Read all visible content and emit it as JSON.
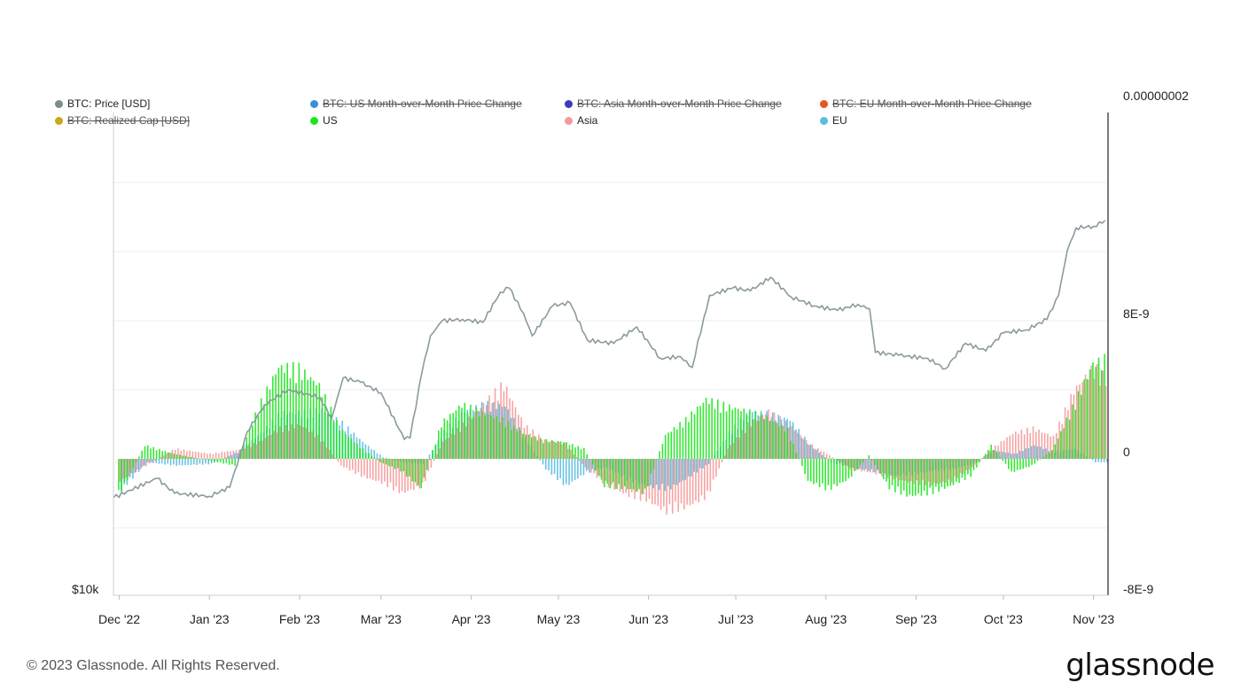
{
  "legend": [
    {
      "label": "BTC: Price [USD]",
      "color": "#7f8c8d",
      "enabled": true
    },
    {
      "label": "BTC: US Month-over-Month Price Change",
      "color": "#3a8fd9",
      "enabled": false
    },
    {
      "label": "BTC: Asia Month-over-Month Price Change",
      "color": "#3b3bbf",
      "enabled": false
    },
    {
      "label": "BTC: EU Month-over-Month Price Change",
      "color": "#e8561c",
      "enabled": false
    },
    {
      "label": "BTC: Realized Cap [USD]",
      "color": "#c9a81b",
      "enabled": false
    },
    {
      "label": "US",
      "color": "#1ee61e",
      "enabled": true
    },
    {
      "label": "Asia",
      "color": "#f59a9a",
      "enabled": true
    },
    {
      "label": "EU",
      "color": "#5bbde0",
      "enabled": true
    }
  ],
  "footer": "© 2023 Glassnode. All Rights Reserved.",
  "brand": "glassnode",
  "chart_data": {
    "type": "bar",
    "x_ticks": [
      "Dec '22",
      "Jan '23",
      "Feb '23",
      "Mar '23",
      "Apr '23",
      "May '23",
      "Jun '23",
      "Jul '23",
      "Aug '23",
      "Sep '23",
      "Oct '23",
      "Nov '23"
    ],
    "left_axis": {
      "label": "$10k"
    },
    "right_axis": {
      "ticks": [
        "0.00000002",
        "8E-9",
        "0",
        "-8E-9"
      ],
      "range": [
        -8e-09,
        2e-08
      ]
    },
    "grid": true,
    "price_series": {
      "name": "BTC: Price [USD]",
      "color": "#8a9a9e",
      "x": [
        "2022-11-29",
        "2022-12-14",
        "2022-12-20",
        "2023-01-01",
        "2023-01-08",
        "2023-01-14",
        "2023-01-20",
        "2023-01-28",
        "2023-02-08",
        "2023-02-12",
        "2023-02-16",
        "2023-02-22",
        "2023-03-01",
        "2023-03-09",
        "2023-03-11",
        "2023-03-15",
        "2023-03-18",
        "2023-03-22",
        "2023-03-29",
        "2023-04-05",
        "2023-04-11",
        "2023-04-14",
        "2023-04-19",
        "2023-04-22",
        "2023-04-29",
        "2023-05-05",
        "2023-05-11",
        "2023-05-20",
        "2023-05-28",
        "2023-06-05",
        "2023-06-12",
        "2023-06-16",
        "2023-06-20",
        "2023-06-22",
        "2023-06-30",
        "2023-07-06",
        "2023-07-13",
        "2023-07-20",
        "2023-07-28",
        "2023-08-05",
        "2023-08-12",
        "2023-08-16",
        "2023-08-18",
        "2023-08-26",
        "2023-09-05",
        "2023-09-11",
        "2023-09-18",
        "2023-09-25",
        "2023-10-01",
        "2023-10-09",
        "2023-10-16",
        "2023-10-20",
        "2023-10-23",
        "2023-10-26",
        "2023-11-01",
        "2023-11-05"
      ],
      "values": [
        16500,
        17800,
        16800,
        16600,
        17200,
        20900,
        22700,
        23700,
        23200,
        21800,
        24500,
        24200,
        23500,
        20400,
        20500,
        24800,
        27300,
        28300,
        28400,
        28200,
        30200,
        30500,
        28800,
        27300,
        29300,
        29500,
        27000,
        26800,
        27900,
        25800,
        25900,
        25200,
        28500,
        30000,
        30500,
        30300,
        31200,
        29900,
        29300,
        29000,
        29400,
        29100,
        26200,
        26000,
        25800,
        25100,
        26800,
        26300,
        27500,
        27700,
        28400,
        30000,
        33000,
        34500,
        34600,
        35000
      ]
    },
    "bar_series": [
      {
        "name": "US",
        "color": "#1ee61e",
        "x": [
          "2022-12-01",
          "2022-12-10",
          "2022-12-20",
          "2023-01-01",
          "2023-01-10",
          "2023-01-18",
          "2023-01-25",
          "2023-02-01",
          "2023-02-08",
          "2023-02-15",
          "2023-02-22",
          "2023-03-01",
          "2023-03-08",
          "2023-03-15",
          "2023-03-22",
          "2023-03-29",
          "2023-04-05",
          "2023-04-12",
          "2023-04-19",
          "2023-04-26",
          "2023-05-03",
          "2023-05-10",
          "2023-05-17",
          "2023-05-24",
          "2023-05-31",
          "2023-06-07",
          "2023-06-14",
          "2023-06-21",
          "2023-06-28",
          "2023-07-05",
          "2023-07-12",
          "2023-07-19",
          "2023-07-26",
          "2023-08-02",
          "2023-08-09",
          "2023-08-16",
          "2023-08-23",
          "2023-08-30",
          "2023-09-06",
          "2023-09-13",
          "2023-09-20",
          "2023-09-27",
          "2023-10-04",
          "2023-10-11",
          "2023-10-18",
          "2023-10-25",
          "2023-11-01",
          "2023-11-05"
        ],
        "values": [
          -2.2e-09,
          8e-10,
          3e-10,
          -1e-10,
          -4e-10,
          3e-09,
          5.4e-09,
          5.3e-09,
          4.3e-09,
          1.8e-09,
          7e-10,
          -2e-10,
          -7e-10,
          -1.7e-09,
          2.1e-09,
          3.2e-09,
          2.7e-09,
          2.3e-09,
          1.5e-09,
          1.1e-09,
          1e-09,
          6e-10,
          -1.6e-09,
          -1.7e-09,
          -2e-09,
          1.4e-09,
          2.3e-09,
          3.5e-09,
          3.1e-09,
          2.8e-09,
          2.4e-09,
          1.7e-09,
          -1.3e-09,
          -1.8e-09,
          -1.2e-09,
          2e-10,
          -1.7e-09,
          -2.2e-09,
          -2e-09,
          -1.6e-09,
          -1e-09,
          8e-10,
          -8e-10,
          -4e-10,
          5e-10,
          3e-09,
          5.6e-09,
          5.8e-09
        ]
      },
      {
        "name": "Asia",
        "color": "#f59a9a",
        "x": [
          "2022-12-01",
          "2022-12-10",
          "2022-12-20",
          "2023-01-01",
          "2023-01-10",
          "2023-01-18",
          "2023-01-25",
          "2023-02-01",
          "2023-02-08",
          "2023-02-15",
          "2023-02-22",
          "2023-03-01",
          "2023-03-08",
          "2023-03-15",
          "2023-03-22",
          "2023-03-29",
          "2023-04-05",
          "2023-04-12",
          "2023-04-19",
          "2023-04-26",
          "2023-05-03",
          "2023-05-10",
          "2023-05-17",
          "2023-05-24",
          "2023-05-31",
          "2023-06-07",
          "2023-06-14",
          "2023-06-21",
          "2023-06-28",
          "2023-07-05",
          "2023-07-12",
          "2023-07-19",
          "2023-07-26",
          "2023-08-02",
          "2023-08-09",
          "2023-08-16",
          "2023-08-23",
          "2023-08-30",
          "2023-09-06",
          "2023-09-13",
          "2023-09-20",
          "2023-09-27",
          "2023-10-04",
          "2023-10-11",
          "2023-10-18",
          "2023-10-25",
          "2023-11-01",
          "2023-11-05"
        ],
        "values": [
          -1.3e-09,
          -4e-10,
          6e-10,
          3e-10,
          5e-10,
          1e-09,
          1.8e-09,
          2e-09,
          1.2e-09,
          -4e-10,
          -1e-09,
          -1.4e-09,
          -2e-09,
          -1.6e-09,
          1e-09,
          2e-09,
          3.2e-09,
          4.4e-09,
          2e-09,
          1.1e-09,
          9e-10,
          -5e-10,
          -1.5e-09,
          -2.1e-09,
          -2.4e-09,
          -3.1e-09,
          -2.8e-09,
          -2.2e-09,
          6e-10,
          2e-09,
          2.8e-09,
          2e-09,
          9e-10,
          2e-10,
          -6e-10,
          -8e-10,
          -1.1e-09,
          -1.4e-09,
          -1.5e-09,
          -1.3e-09,
          -5e-10,
          6e-10,
          1.5e-09,
          1.8e-09,
          1.3e-09,
          4e-09,
          5.4e-09,
          4.7e-09
        ]
      },
      {
        "name": "EU",
        "color": "#5bbde0",
        "x": [
          "2022-12-01",
          "2022-12-10",
          "2022-12-20",
          "2023-01-01",
          "2023-01-10",
          "2023-01-18",
          "2023-01-25",
          "2023-02-01",
          "2023-02-08",
          "2023-02-15",
          "2023-02-22",
          "2023-03-01",
          "2023-03-08",
          "2023-03-15",
          "2023-03-22",
          "2023-03-29",
          "2023-04-05",
          "2023-04-12",
          "2023-04-19",
          "2023-04-26",
          "2023-05-03",
          "2023-05-10",
          "2023-05-17",
          "2023-05-24",
          "2023-05-31",
          "2023-06-07",
          "2023-06-14",
          "2023-06-21",
          "2023-06-28",
          "2023-07-05",
          "2023-07-12",
          "2023-07-19",
          "2023-07-26",
          "2023-08-02",
          "2023-08-09",
          "2023-08-16",
          "2023-08-23",
          "2023-08-30",
          "2023-09-06",
          "2023-09-13",
          "2023-09-20",
          "2023-09-27",
          "2023-10-04",
          "2023-10-11",
          "2023-10-18",
          "2023-10-25",
          "2023-11-01",
          "2023-11-05"
        ],
        "values": [
          -1.8e-09,
          -2e-10,
          -4e-10,
          -3e-10,
          4e-10,
          1.5e-09,
          2.7e-09,
          2.7e-09,
          2.9e-09,
          2.1e-09,
          1e-09,
          1e-10,
          -2e-10,
          -3e-10,
          1.6e-09,
          2.8e-09,
          3.2e-09,
          3.1e-09,
          1.2e-09,
          -6e-10,
          -1.6e-09,
          -8e-10,
          -5e-10,
          -1.2e-09,
          -1.6e-09,
          -1.8e-09,
          -1.1e-09,
          -3e-10,
          1.5e-09,
          2.8e-09,
          2.6e-09,
          2.3e-09,
          8e-10,
          -2e-10,
          -5e-10,
          -7e-10,
          -1e-09,
          -9e-10,
          -7e-10,
          -6e-10,
          -3e-10,
          5e-10,
          3e-10,
          8e-10,
          4e-10,
          6e-10,
          -2e-10,
          -2e-10
        ]
      }
    ]
  }
}
